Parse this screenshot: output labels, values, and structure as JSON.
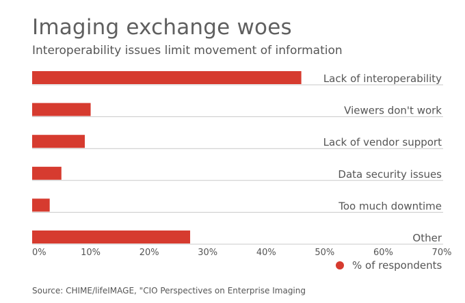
{
  "chart_data": {
    "type": "bar",
    "orientation": "horizontal",
    "title": "Imaging exchange woes",
    "subtitle": "Interoperability issues limit movement of information",
    "categories": [
      "Lack of interoperability",
      "Viewers don't work",
      "Lack of vendor support",
      "Data security issues",
      "Too much downtime",
      "Other"
    ],
    "series": [
      {
        "name": "% of respondents",
        "values": [
          46,
          10,
          9,
          5,
          3,
          27
        ],
        "color": "#d63b2f"
      }
    ],
    "xlim": [
      0,
      70
    ],
    "x_ticks": [
      0,
      10,
      20,
      30,
      40,
      50,
      60,
      70
    ],
    "x_tick_labels": [
      "0%",
      "10%",
      "20%",
      "30%",
      "40%",
      "50%",
      "60%",
      "70%"
    ],
    "xlabel": "",
    "ylabel": "",
    "grid": false,
    "legend_position": "bottom-right",
    "source": "Source: CHIME/lifeIMAGE, \"CIO Perspectives on Enterprise Imaging"
  },
  "colors": {
    "bar": "#d63b2f",
    "separator": "#c8c8c8",
    "title": "#5f5f5f",
    "text": "#555555"
  }
}
